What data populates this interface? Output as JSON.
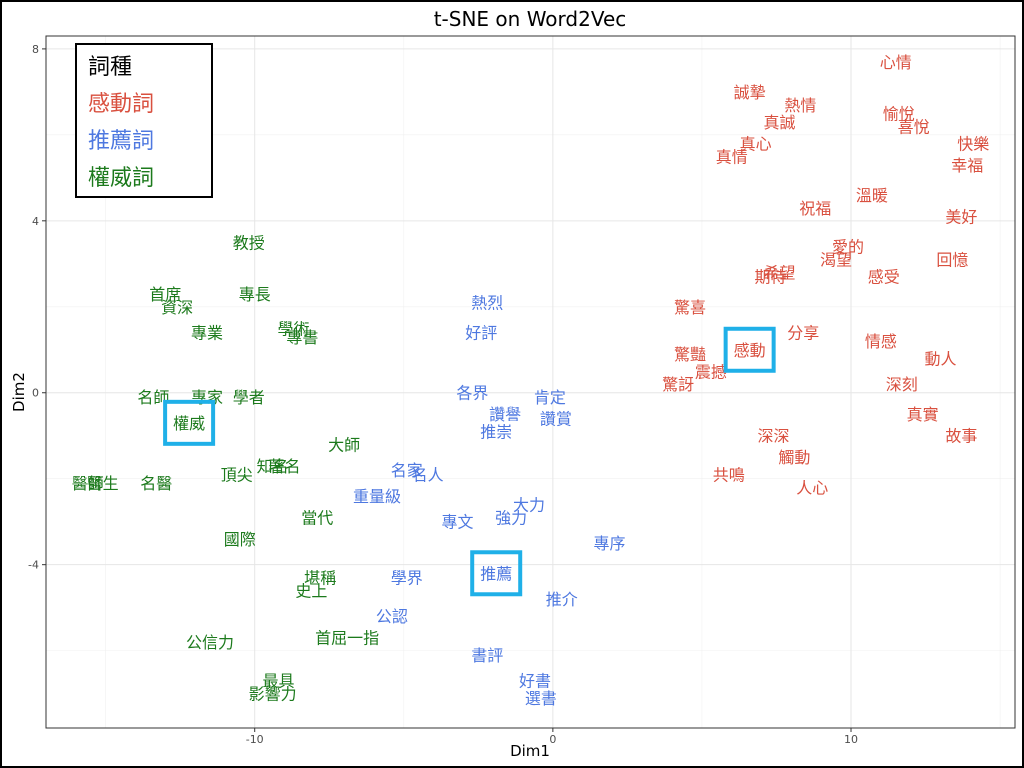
{
  "chart_data": {
    "type": "scatter",
    "title": "t-SNE on Word2Vec",
    "xlabel": "Dim1",
    "ylabel": "Dim2",
    "xlim": [
      -17,
      15.5
    ],
    "ylim": [
      -7.8,
      8.3
    ],
    "xticks": [
      -10,
      0,
      10
    ],
    "yticks": [
      -4,
      0,
      4,
      8
    ],
    "grid": true,
    "legend": {
      "title": "詞種",
      "placement": "top-left",
      "entries": [
        {
          "name": "感動詞",
          "color": "#d9503f"
        },
        {
          "name": "推薦詞",
          "color": "#4e78e0"
        },
        {
          "name": "權威詞",
          "color": "#1c7a1c"
        }
      ]
    },
    "highlight_color": "#1fb0e8",
    "series": [
      {
        "name": "感動詞",
        "color": "#d9503f",
        "points": [
          {
            "x": 11.5,
            "y": 7.7,
            "label": "心情"
          },
          {
            "x": 6.6,
            "y": 7.0,
            "label": "誠摯"
          },
          {
            "x": 8.3,
            "y": 6.7,
            "label": "熱情"
          },
          {
            "x": 11.6,
            "y": 6.5,
            "label": "愉悅"
          },
          {
            "x": 7.6,
            "y": 6.3,
            "label": "真誠"
          },
          {
            "x": 12.1,
            "y": 6.2,
            "label": "喜悅"
          },
          {
            "x": 6.8,
            "y": 5.8,
            "label": "真心"
          },
          {
            "x": 14.1,
            "y": 5.8,
            "label": "快樂"
          },
          {
            "x": 6.0,
            "y": 5.5,
            "label": "真情"
          },
          {
            "x": 13.9,
            "y": 5.3,
            "label": "幸福"
          },
          {
            "x": 10.7,
            "y": 4.6,
            "label": "溫暖"
          },
          {
            "x": 8.8,
            "y": 4.3,
            "label": "祝福"
          },
          {
            "x": 13.7,
            "y": 4.1,
            "label": "美好"
          },
          {
            "x": 9.9,
            "y": 3.4,
            "label": "愛的"
          },
          {
            "x": 9.5,
            "y": 3.1,
            "label": "渴望"
          },
          {
            "x": 13.4,
            "y": 3.1,
            "label": "回憶"
          },
          {
            "x": 7.6,
            "y": 2.8,
            "label": "希望"
          },
          {
            "x": 7.3,
            "y": 2.7,
            "label": "期待"
          },
          {
            "x": 11.1,
            "y": 2.7,
            "label": "感受"
          },
          {
            "x": 4.6,
            "y": 2.0,
            "label": "驚喜"
          },
          {
            "x": 8.4,
            "y": 1.4,
            "label": "分享"
          },
          {
            "x": 6.6,
            "y": 1.0,
            "label": "感動"
          },
          {
            "x": 11.0,
            "y": 1.2,
            "label": "情感"
          },
          {
            "x": 4.6,
            "y": 0.9,
            "label": "驚豔"
          },
          {
            "x": 13.0,
            "y": 0.8,
            "label": "動人"
          },
          {
            "x": 5.3,
            "y": 0.5,
            "label": "震撼"
          },
          {
            "x": 4.2,
            "y": 0.2,
            "label": "驚訝"
          },
          {
            "x": 11.7,
            "y": 0.2,
            "label": "深刻"
          },
          {
            "x": 12.4,
            "y": -0.5,
            "label": "真實"
          },
          {
            "x": 7.4,
            "y": -1.0,
            "label": "深深"
          },
          {
            "x": 13.7,
            "y": -1.0,
            "label": "故事"
          },
          {
            "x": 8.1,
            "y": -1.5,
            "label": "觸動"
          },
          {
            "x": 5.9,
            "y": -1.9,
            "label": "共鳴"
          },
          {
            "x": 8.7,
            "y": -2.2,
            "label": "人心"
          }
        ]
      },
      {
        "name": "推薦詞",
        "color": "#4e78e0",
        "points": [
          {
            "x": -2.2,
            "y": 2.1,
            "label": "熱烈"
          },
          {
            "x": -2.4,
            "y": 1.4,
            "label": "好評"
          },
          {
            "x": -2.7,
            "y": 0.0,
            "label": "各界"
          },
          {
            "x": -0.1,
            "y": -0.1,
            "label": "肯定"
          },
          {
            "x": -1.6,
            "y": -0.5,
            "label": "讚譽"
          },
          {
            "x": 0.1,
            "y": -0.6,
            "label": "讚賞"
          },
          {
            "x": -1.9,
            "y": -0.9,
            "label": "推崇"
          },
          {
            "x": -4.9,
            "y": -1.8,
            "label": "名家"
          },
          {
            "x": -4.2,
            "y": -1.9,
            "label": "名人"
          },
          {
            "x": -5.9,
            "y": -2.4,
            "label": "重量級"
          },
          {
            "x": -0.8,
            "y": -2.6,
            "label": "大力"
          },
          {
            "x": -1.4,
            "y": -2.9,
            "label": "強力"
          },
          {
            "x": -3.2,
            "y": -3.0,
            "label": "專文"
          },
          {
            "x": 1.9,
            "y": -3.5,
            "label": "專序"
          },
          {
            "x": -1.9,
            "y": -4.2,
            "label": "推薦"
          },
          {
            "x": -4.9,
            "y": -4.3,
            "label": "學界"
          },
          {
            "x": 0.3,
            "y": -4.8,
            "label": "推介"
          },
          {
            "x": -5.4,
            "y": -5.2,
            "label": "公認"
          },
          {
            "x": -2.2,
            "y": -6.1,
            "label": "書評"
          },
          {
            "x": -0.6,
            "y": -6.7,
            "label": "好書"
          },
          {
            "x": -0.4,
            "y": -7.1,
            "label": "選書"
          }
        ]
      },
      {
        "name": "權威詞",
        "color": "#1c7a1c",
        "points": [
          {
            "x": -10.2,
            "y": 3.5,
            "label": "教授"
          },
          {
            "x": -13.0,
            "y": 2.3,
            "label": "首席"
          },
          {
            "x": -10.0,
            "y": 2.3,
            "label": "專長"
          },
          {
            "x": -12.6,
            "y": 2.0,
            "label": "資深"
          },
          {
            "x": -11.6,
            "y": 1.4,
            "label": "專業"
          },
          {
            "x": -8.7,
            "y": 1.5,
            "label": "學術"
          },
          {
            "x": -8.4,
            "y": 1.3,
            "label": "專書"
          },
          {
            "x": -13.4,
            "y": -0.1,
            "label": "名師"
          },
          {
            "x": -11.6,
            "y": -0.1,
            "label": "專家"
          },
          {
            "x": -10.2,
            "y": -0.1,
            "label": "學者"
          },
          {
            "x": -12.2,
            "y": -0.7,
            "label": "權威"
          },
          {
            "x": -7.0,
            "y": -1.2,
            "label": "大師"
          },
          {
            "x": -9.4,
            "y": -1.7,
            "label": "知名"
          },
          {
            "x": -9.0,
            "y": -1.7,
            "label": "著名"
          },
          {
            "x": -15.6,
            "y": -2.1,
            "label": "醫師"
          },
          {
            "x": -15.1,
            "y": -2.1,
            "label": "醫生"
          },
          {
            "x": -13.3,
            "y": -2.1,
            "label": "名醫"
          },
          {
            "x": -10.6,
            "y": -1.9,
            "label": "頂尖"
          },
          {
            "x": -7.9,
            "y": -2.9,
            "label": "當代"
          },
          {
            "x": -10.5,
            "y": -3.4,
            "label": "國際"
          },
          {
            "x": -7.8,
            "y": -4.3,
            "label": "堪稱"
          },
          {
            "x": -8.1,
            "y": -4.6,
            "label": "史上"
          },
          {
            "x": -11.5,
            "y": -5.8,
            "label": "公信力"
          },
          {
            "x": -6.9,
            "y": -5.7,
            "label": "首屈一指"
          },
          {
            "x": -9.2,
            "y": -6.7,
            "label": "最具"
          },
          {
            "x": -9.4,
            "y": -7.0,
            "label": "影響力"
          }
        ]
      }
    ],
    "highlighted": [
      "權威",
      "感動",
      "推薦"
    ]
  }
}
